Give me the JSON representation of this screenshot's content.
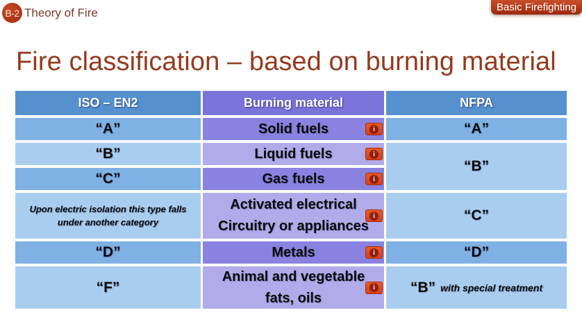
{
  "header": {
    "badge_code": "B-2",
    "lesson_title": "Theory of Fire",
    "ribbon_label": "Basic Firefighting"
  },
  "title": "Fire classification – based on burning material",
  "table": {
    "column_headers": {
      "iso": "ISO – EN2",
      "burning": "Burning material",
      "nfpa": "NFPA"
    },
    "rows": [
      {
        "iso": "“A”",
        "burning": "Solid fuels",
        "nfpa": "“A”"
      },
      {
        "iso": "“B”",
        "burning": "Liquid fuels",
        "nfpa": "“B”"
      },
      {
        "iso": "“C”",
        "burning": "Gas fuels"
      },
      {
        "iso": "Upon electric isolation this type falls\nunder another category",
        "burning": "Activated electrical\nCircuitry or appliances",
        "nfpa": "“C”"
      },
      {
        "iso": "“D”",
        "burning": "Metals",
        "nfpa": "“D”"
      },
      {
        "iso": "“F”",
        "burning": "Animal and vegetable\nfats, oils",
        "nfpa_main": "“B”",
        "nfpa_note": "with special treatment"
      }
    ],
    "info_icon_glyph": "i"
  },
  "colors": {
    "page_bg": "#ffffff",
    "title_color": "#943a1e",
    "lesson_title_color": "#7a392c",
    "badge_red_light": "#c94722",
    "badge_red_dark": "#a83114",
    "badge_text": "#f7ecd9",
    "ribbon_top": "#c94e2a",
    "ribbon_bottom": "#9b2a0f",
    "header_blue": "#5591cf",
    "band_blue_dark": "#7fb1e4",
    "band_blue_light": "#a9cdee",
    "header_purple": "#7973da",
    "band_purple_dark": "#8a82e0",
    "band_purple_light": "#b1abea",
    "info_bg_top": "#ec5a26",
    "info_bg_bottom": "#d63f17",
    "info_border": "#a3300f",
    "info_circle": "#8c2012",
    "info_glyph_color": "#f6d9c8"
  }
}
